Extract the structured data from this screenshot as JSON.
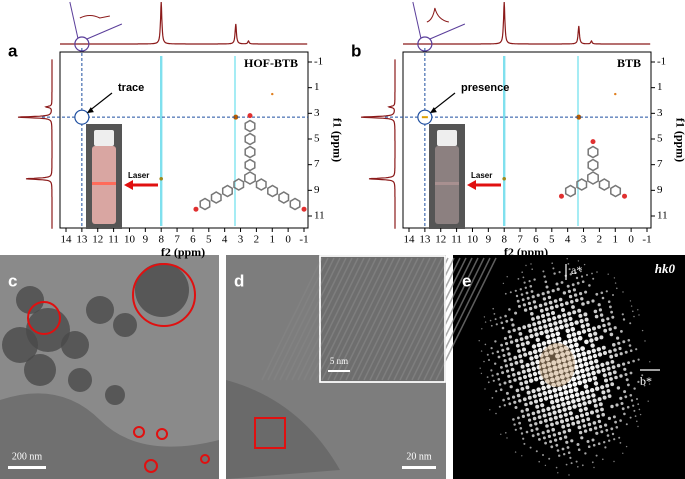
{
  "panels": [
    {
      "label": "a",
      "compound": "HOF-BTB",
      "annotation": "trace",
      "laser": "Laser",
      "x_axis_title": "f2 (ppm)",
      "y_axis_title": "f1 (ppm)",
      "x_ticks": [
        14,
        13,
        12,
        11,
        10,
        9,
        8,
        7,
        6,
        5,
        4,
        3,
        2,
        1,
        0,
        -1
      ],
      "y_ticks": [
        -1,
        1,
        3,
        5,
        7,
        9,
        11
      ]
    },
    {
      "label": "b",
      "compound": "BTB",
      "annotation": "presence",
      "laser": "Laser",
      "x_axis_title": "f2 (ppm)",
      "y_axis_title": "f1 (ppm)",
      "x_ticks": [
        14,
        13,
        12,
        11,
        10,
        9,
        8,
        7,
        6,
        5,
        4,
        3,
        2,
        1,
        0,
        -1
      ],
      "y_ticks": [
        -1,
        1,
        3,
        5,
        7,
        9,
        11
      ]
    },
    {
      "label": "c",
      "scale_bar": "200 nm"
    },
    {
      "label": "d",
      "scale_bar": "20 nm",
      "inset_scale_bar": "5 nm"
    },
    {
      "label": "e",
      "pattern": "hk0",
      "axis_a": "a*",
      "axis_b": "b*"
    }
  ]
}
